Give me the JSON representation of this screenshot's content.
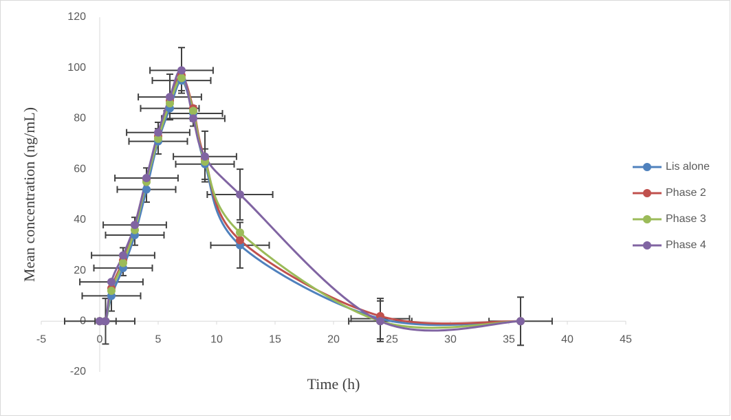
{
  "chart_data": {
    "type": "line",
    "xlabel": "Time (h)",
    "ylabel": "Mean concentration (ng/mL)",
    "x": [
      0,
      0.5,
      1,
      2,
      3,
      4,
      5,
      6,
      7,
      8,
      9,
      12,
      24,
      36
    ],
    "series": [
      {
        "name": "Lis alone",
        "color": "#4f81bd",
        "values": [
          0,
          0,
          10,
          21,
          34,
          52,
          71,
          84,
          95,
          82,
          62,
          30,
          1,
          0
        ],
        "y_errors": [
          0,
          9,
          6,
          3,
          4,
          5,
          5,
          4,
          4,
          3,
          6,
          9,
          8,
          0
        ],
        "x_errors": [
          3,
          0.9,
          2.5,
          2.5,
          2.5,
          2.5,
          2.5,
          2.5,
          2.5,
          2.5,
          2.5,
          2.5,
          2.5,
          0
        ]
      },
      {
        "name": "Phase 2",
        "color": "#c0504d",
        "values": [
          0,
          0,
          13,
          24,
          38,
          56,
          73,
          87,
          97,
          84,
          64,
          32,
          2,
          0
        ]
      },
      {
        "name": "Phase 3",
        "color": "#9bbb59",
        "values": [
          0,
          0,
          12,
          23,
          36,
          55,
          72,
          86,
          96,
          83,
          63,
          35,
          0,
          0
        ]
      },
      {
        "name": "Phase 4",
        "color": "#8064a2",
        "values": [
          0,
          0,
          15.5,
          26,
          38,
          56.5,
          74.5,
          88.5,
          99,
          80,
          65,
          50,
          0,
          0
        ],
        "y_errors": [
          0,
          0,
          0,
          3,
          3,
          4,
          4,
          9,
          9,
          3,
          10,
          10,
          8,
          9.5
        ],
        "x_errors": [
          0,
          0,
          2.7,
          2.7,
          2.7,
          2.7,
          2.7,
          2.7,
          2.7,
          2.7,
          2.7,
          2.8,
          2.7,
          2.7
        ]
      }
    ],
    "xlim": [
      -5,
      45
    ],
    "xticks": [
      -5,
      0,
      5,
      10,
      15,
      20,
      25,
      30,
      35,
      40,
      45
    ],
    "ylim": [
      -20,
      120
    ],
    "yticks": [
      -20,
      0,
      20,
      40,
      60,
      80,
      100,
      120
    ],
    "legend": "right",
    "grid": false,
    "smooth": true
  }
}
